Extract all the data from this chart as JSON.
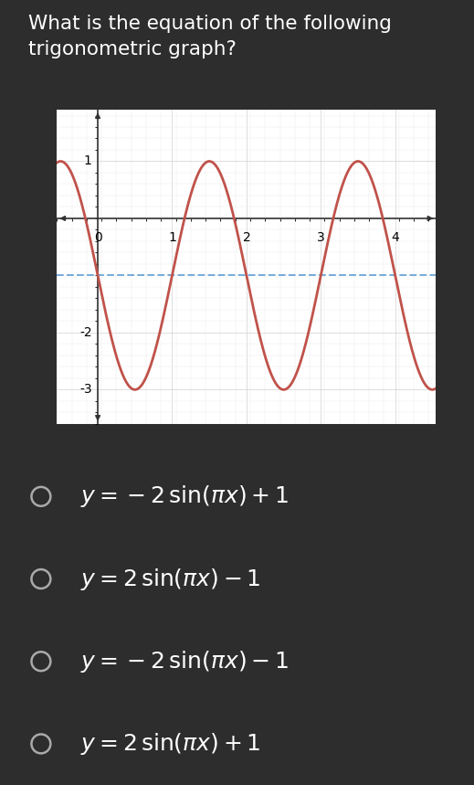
{
  "title_line1": "What is the equation of the following",
  "title_line2": "trigonometric graph?",
  "title_fontsize": 15.5,
  "bg_color": "#2d2d2d",
  "graph_bg": "#ffffff",
  "curve_color": "#c0524a",
  "curve_linewidth": 2.0,
  "dashed_line_y": -1,
  "dashed_color": "#7aacdb",
  "dashed_linewidth": 1.5,
  "xlim": [
    -0.55,
    4.55
  ],
  "ylim": [
    -3.6,
    1.9
  ],
  "xticks": [
    0,
    1,
    2,
    3,
    4
  ],
  "yticks": [
    -3,
    -2,
    1
  ],
  "amplitude": -2,
  "frequency": 3.14159265358979,
  "vertical_shift": -1,
  "choices": [
    "y = -2\\,\\sin(\\pi x) + 1",
    "y = 2\\,\\sin(\\pi x) - 1",
    "y = -2\\,\\sin(\\pi x) - 1",
    "y = 2\\,\\sin(\\pi x) + 1"
  ],
  "choice_fontsize": 18,
  "text_color": "#ffffff",
  "grid_color": "#d0d0d0",
  "grid_linewidth": 0.5,
  "axis_color": "#333333",
  "tick_fontsize": 10
}
